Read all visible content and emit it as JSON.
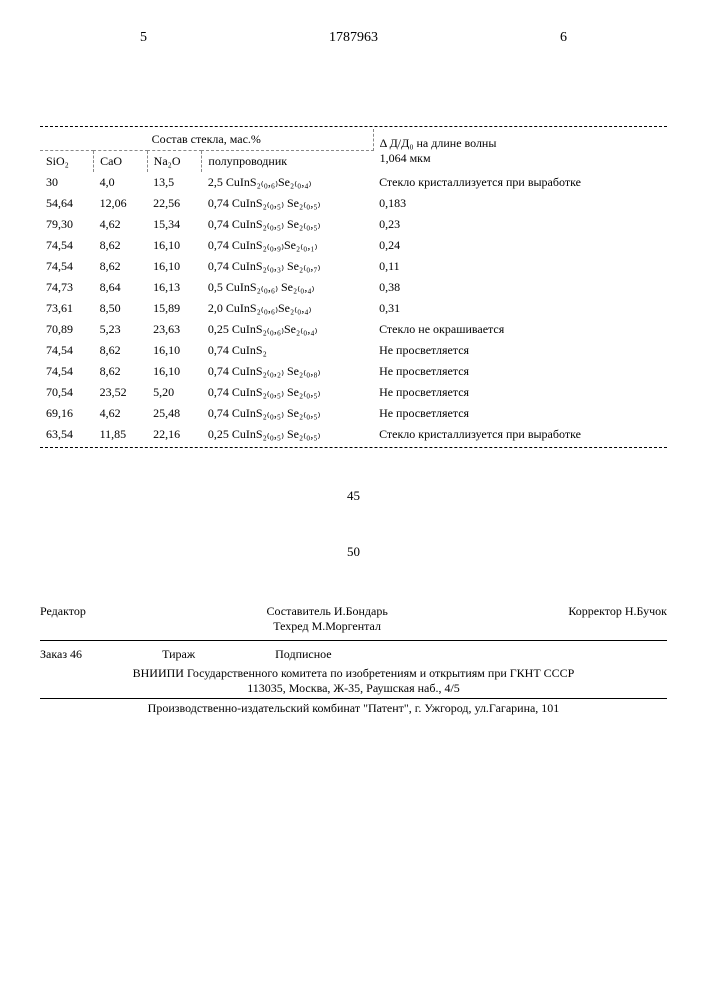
{
  "header": {
    "left_num": "5",
    "doc_num": "1787963",
    "right_num": "6"
  },
  "table": {
    "group_header": "Состав стекла, мас.%",
    "result_header_1": "Δ Д/Д₀ на длине волны",
    "result_header_2": "1,064 мкм",
    "columns": {
      "sio2": "SiO₂",
      "cao": "CaO",
      "na2o": "Na₂O",
      "semi": "полупроводник"
    },
    "rows": [
      {
        "sio2": "30",
        "cao": "4,0",
        "na2o": "13,5",
        "amt": "2,5",
        "formula": "CuInS₂₍₀,₆₎Se₂₍₀,₄₎",
        "result": "Стекло кристаллизуется при выработке"
      },
      {
        "sio2": "54,64",
        "cao": "12,06",
        "na2o": "22,56",
        "amt": "0,74",
        "formula": "CuInS₂₍₀,₅₎ Se₂₍₀,₅₎",
        "result": "0,183"
      },
      {
        "sio2": "79,30",
        "cao": "4,62",
        "na2o": "15,34",
        "amt": "0,74",
        "formula": "CuInS₂₍₀,₅₎ Se₂₍₀,₅₎",
        "result": "0,23"
      },
      {
        "sio2": "74,54",
        "cao": "8,62",
        "na2o": "16,10",
        "amt": "0,74",
        "formula": "CuInS₂₍₀,₉₎Se₂₍₀,₁₎",
        "result": "0,24"
      },
      {
        "sio2": "74,54",
        "cao": "8,62",
        "na2o": "16,10",
        "amt": "0,74",
        "formula": "CuInS₂₍₀,₃₎ Se₂₍₀,₇₎",
        "result": "0,11"
      },
      {
        "sio2": "74,73",
        "cao": "8,64",
        "na2o": "16,13",
        "amt": "0,5",
        "formula": "CuInS₂₍₀,₆₎ Se₂₍₀,₄₎",
        "result": "0,38"
      },
      {
        "sio2": "73,61",
        "cao": "8,50",
        "na2o": "15,89",
        "amt": "2,0",
        "formula": "CuInS₂₍₀,₆₎Se₂₍₀,₄₎",
        "result": "0,31"
      },
      {
        "sio2": "70,89",
        "cao": "5,23",
        "na2o": "23,63",
        "amt": "0,25",
        "formula": "CuInS₂₍₀,₆₎Se₂₍₀,₄₎",
        "result": "Стекло не окрашивается"
      },
      {
        "sio2": "74,54",
        "cao": "8,62",
        "na2o": "16,10",
        "amt": "0,74",
        "formula": "CuInS₂",
        "result": "Не просветляется"
      },
      {
        "sio2": "74,54",
        "cao": "8,62",
        "na2o": "16,10",
        "amt": "0,74",
        "formula": "CuInS₂₍₀,₂₎ Se₂₍₀,₈₎",
        "result": "Не просветляется"
      },
      {
        "sio2": "70,54",
        "cao": "23,52",
        "na2o": "5,20",
        "amt": "0,74",
        "formula": "CuInS₂₍₀,₅₎ Se₂₍₀,₅₎",
        "result": "Не просветляется"
      },
      {
        "sio2": "69,16",
        "cao": "4,62",
        "na2o": "25,48",
        "amt": "0,74",
        "formula": "CuInS₂₍₀,₅₎ Se₂₍₀,₅₎",
        "result": "Не просветляется"
      },
      {
        "sio2": "63,54",
        "cao": "11,85",
        "na2o": "22,16",
        "amt": "0,25",
        "formula": "CuInS₂₍₀,₅₎ Se₂₍₀,₅₎",
        "result": "Стекло кристаллизуется при выработке"
      }
    ]
  },
  "mid": {
    "num1": "45",
    "num2": "50"
  },
  "credits": {
    "editor_label": "Редактор",
    "compiler": "Составитель И.Бондарь",
    "techred": "Техред М.Моргентал",
    "corrector": "Корректор Н.Бучок",
    "order": "Заказ 46",
    "tirage": "Тираж",
    "subscr": "Подписное",
    "org1": "ВНИИПИ Государственного комитета по изобретениям и открытиям при ГКНТ СССР",
    "org2": "113035, Москва, Ж-35, Раушская наб., 4/5",
    "prod": "Производственно-издательский комбинат \"Патент\", г. Ужгород, ул.Гагарина, 101"
  }
}
